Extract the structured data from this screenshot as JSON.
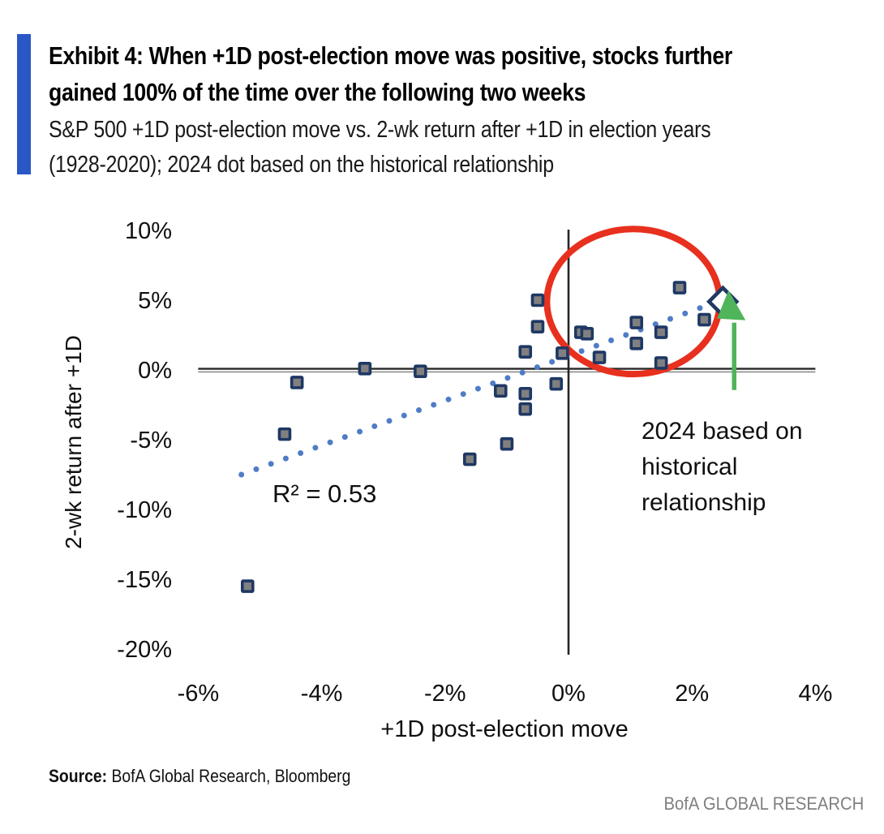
{
  "exhibit": {
    "accent_bar_color": "#2A57C5",
    "title_lines": [
      "Exhibit 4: When +1D post-election move was positive, stocks further",
      "gained 100% of the time over the following two weeks"
    ],
    "subtitle_lines": [
      "S&P 500 +1D post-election move vs. 2-wk return after +1D in election years",
      "(1928-2020); 2024 dot based on the historical relationship"
    ]
  },
  "chart_data": {
    "type": "scatter",
    "title": "Exhibit 4: When +1D post-election move was positive, stocks further gained 100% of the time over the following two weeks",
    "subtitle": "S&P 500 +1D post-election move vs. 2-wk return after +1D in election years (1928-2020); 2024 dot based on the historical relationship",
    "xlabel": "+1D post-election move",
    "ylabel": "2-wk return after +1D",
    "xlim": [
      -6,
      4
    ],
    "ylim": [
      -20,
      10
    ],
    "x_ticks": [
      "-6%",
      "-4%",
      "-2%",
      "0%",
      "2%",
      "4%"
    ],
    "x_tick_values": [
      -6,
      -4,
      -2,
      0,
      2,
      4
    ],
    "y_ticks": [
      "10%",
      "5%",
      "0%",
      "-5%",
      "-10%",
      "-15%",
      "-20%"
    ],
    "y_tick_values": [
      10,
      5,
      0,
      -5,
      -10,
      -15,
      -20
    ],
    "grid": false,
    "legend": false,
    "series": [
      {
        "name": "Election years 1928-2020",
        "marker": "square",
        "points": [
          [
            -5.2,
            -15.5
          ],
          [
            -4.6,
            -4.6
          ],
          [
            -4.4,
            -0.9
          ],
          [
            -3.3,
            0.1
          ],
          [
            -2.4,
            -0.1
          ],
          [
            -1.6,
            -6.4
          ],
          [
            -1.1,
            -1.5
          ],
          [
            -1.0,
            -5.3
          ],
          [
            -0.7,
            -2.8
          ],
          [
            -0.7,
            -1.7
          ],
          [
            -0.7,
            1.3
          ],
          [
            -0.5,
            3.1
          ],
          [
            -0.5,
            5.0
          ],
          [
            -0.2,
            -1.0
          ],
          [
            -0.1,
            1.2
          ],
          [
            0.2,
            2.7
          ],
          [
            0.3,
            2.6
          ],
          [
            0.5,
            0.9
          ],
          [
            1.1,
            1.9
          ],
          [
            1.1,
            3.4
          ],
          [
            1.5,
            0.5
          ],
          [
            1.5,
            2.7
          ],
          [
            1.8,
            5.9
          ],
          [
            2.2,
            3.6
          ]
        ]
      },
      {
        "name": "2024 based on historical relationship",
        "marker": "diamond",
        "points": [
          [
            2.5,
            4.9
          ]
        ]
      }
    ],
    "trendline": {
      "r_squared_label": "R² = 0.53",
      "start": [
        -5.3,
        -7.5
      ],
      "end": [
        2.42,
        4.9
      ]
    },
    "annotations": {
      "callout_lines": [
        "2024 based on",
        "historical",
        "relationship"
      ],
      "highlight_ellipse": {
        "center": [
          1.05,
          4.9
        ],
        "rx": 1.4,
        "ry": 5.2,
        "color": "#E8301F"
      },
      "arrow_color": "#4FB45A"
    },
    "colors": {
      "marker_fill": "#808080",
      "marker_stroke": "#1F3864",
      "trend": "#4F7CC7",
      "axis": "#262626"
    }
  },
  "footer": {
    "source_label": "Source:",
    "source_text": " BofA Global Research, Bloomberg",
    "brand": "BofA GLOBAL RESEARCH"
  }
}
